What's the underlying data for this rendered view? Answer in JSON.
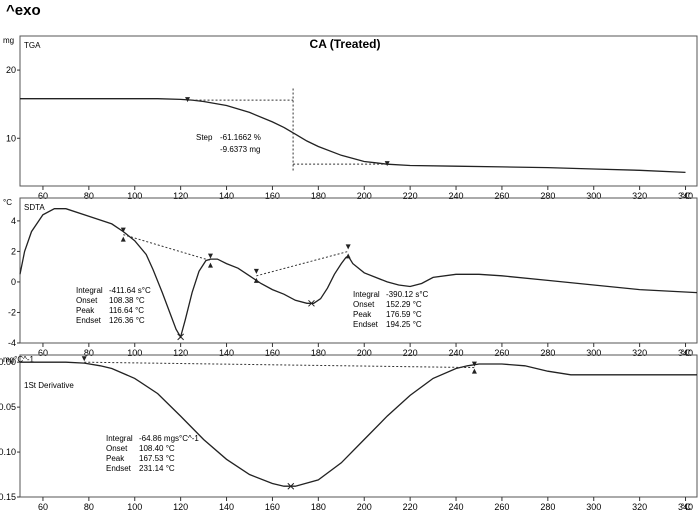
{
  "header": {
    "exo_label": "^exo"
  },
  "chart_data": [
    {
      "type": "line",
      "title": "CA (Treated)",
      "series_label": "TGA",
      "yunit": "mg",
      "xunit": "°C",
      "xlim": [
        50,
        345
      ],
      "ylim": [
        3,
        25
      ],
      "yticks": [
        10,
        20
      ],
      "xticks": [
        60,
        80,
        100,
        120,
        140,
        160,
        180,
        200,
        220,
        240,
        260,
        280,
        300,
        320,
        340
      ],
      "series": [
        {
          "x": [
            50,
            60,
            80,
            100,
            110,
            120,
            125,
            130,
            140,
            150,
            160,
            165,
            170,
            175,
            180,
            190,
            200,
            205,
            210,
            220,
            240,
            260,
            280,
            300,
            320,
            340
          ],
          "y": [
            15.8,
            15.8,
            15.8,
            15.8,
            15.8,
            15.7,
            15.6,
            15.4,
            14.8,
            13.8,
            12.4,
            11.6,
            10.6,
            9.6,
            8.8,
            7.5,
            6.6,
            6.4,
            6.2,
            6.0,
            5.9,
            5.8,
            5.7,
            5.5,
            5.3,
            5.0
          ]
        }
      ],
      "step_annotation": {
        "label": "Step",
        "percent": "-61.1662 %",
        "mass": "-9.6373 mg",
        "x_start": 123,
        "x_end": 210,
        "x_marker": 169,
        "y_start": 15.6,
        "y_end": 6.2
      }
    },
    {
      "type": "line",
      "series_label": "SDTA",
      "yunit": "°C",
      "xunit": "°C",
      "xlim": [
        50,
        345
      ],
      "ylim": [
        -4,
        5.5
      ],
      "yticks": [
        -4,
        -2,
        0,
        2,
        4
      ],
      "xticks": [
        60,
        80,
        100,
        120,
        140,
        160,
        180,
        200,
        220,
        240,
        260,
        280,
        300,
        320,
        340
      ],
      "series": [
        {
          "x": [
            50,
            52,
            55,
            60,
            65,
            70,
            80,
            90,
            95,
            100,
            105,
            108,
            112,
            116,
            118,
            120,
            122,
            125,
            128,
            131,
            133,
            136,
            140,
            145,
            150,
            155,
            160,
            165,
            170,
            175,
            178,
            181,
            184,
            187,
            190,
            192,
            193,
            195,
            200,
            205,
            210,
            215,
            220,
            225,
            230,
            240,
            250,
            260,
            280,
            300,
            320,
            345
          ],
          "y": [
            0.5,
            2.0,
            3.3,
            4.4,
            4.8,
            4.8,
            4.3,
            3.8,
            3.3,
            2.7,
            1.8,
            0.8,
            -0.7,
            -2.3,
            -3.1,
            -3.6,
            -2.5,
            -0.7,
            0.7,
            1.4,
            1.5,
            1.5,
            1.2,
            0.9,
            0.4,
            -0.1,
            -0.5,
            -0.8,
            -1.2,
            -1.4,
            -1.4,
            -1.1,
            -0.4,
            0.5,
            1.2,
            1.6,
            1.7,
            1.2,
            0.6,
            0.3,
            0.0,
            -0.2,
            -0.3,
            -0.1,
            0.3,
            0.5,
            0.5,
            0.4,
            0.1,
            -0.2,
            -0.5,
            -0.7
          ]
        }
      ],
      "peak_annotations": [
        {
          "label_integral": "Integral",
          "integral": "-411.64 s°C",
          "label_onset": "Onset",
          "onset": "108.38 °C",
          "label_peak": "Peak",
          "peak": "116.64 °C",
          "label_endset": "Endset",
          "endset": "126.36 °C",
          "baseline": {
            "x": [
              95,
              133
            ],
            "y": [
              3.1,
              1.4
            ]
          },
          "x_min": 120,
          "y_min": -3.6
        },
        {
          "label_integral": "Integral",
          "integral": "-390.12 s°C",
          "label_onset": "Onset",
          "onset": "152.29 °C",
          "label_peak": "Peak",
          "peak": "176.59 °C",
          "label_endset": "Endset",
          "endset": "194.25 °C",
          "baseline": {
            "x": [
              153,
              193
            ],
            "y": [
              0.4,
              2.0
            ]
          },
          "x_min": 177,
          "y_min": -1.4
        }
      ]
    },
    {
      "type": "line",
      "series_label": "1St Derivative",
      "yunit": "mg°C^-1",
      "xunit": "°C",
      "xlim": [
        50,
        345
      ],
      "ylim": [
        -0.15,
        0.008
      ],
      "yticks": [
        -0.15,
        -0.1,
        -0.05,
        0.0
      ],
      "ytick_labels": [
        "-0.15",
        "-0.10",
        "-0.05",
        "-0.00"
      ],
      "xticks": [
        60,
        80,
        100,
        120,
        140,
        160,
        180,
        200,
        220,
        240,
        260,
        280,
        300,
        320,
        340
      ],
      "series": [
        {
          "x": [
            50,
            60,
            70,
            78,
            85,
            90,
            100,
            110,
            120,
            130,
            140,
            150,
            160,
            165,
            170,
            180,
            190,
            200,
            210,
            220,
            230,
            240,
            245,
            250,
            260,
            270,
            280,
            290,
            300,
            320,
            345
          ],
          "y": [
            0.0,
            0.0,
            0.0,
            -0.001,
            -0.004,
            -0.007,
            -0.018,
            -0.035,
            -0.06,
            -0.086,
            -0.108,
            -0.125,
            -0.135,
            -0.138,
            -0.138,
            -0.131,
            -0.112,
            -0.086,
            -0.06,
            -0.037,
            -0.018,
            -0.007,
            -0.004,
            -0.002,
            -0.002,
            -0.004,
            -0.01,
            -0.014,
            -0.014,
            -0.014,
            -0.014
          ]
        }
      ],
      "peak_annotation": {
        "label_integral": "Integral",
        "integral": "-64.86 mgs°C^-1",
        "label_onset": "Onset",
        "onset": "108.40 °C",
        "label_peak": "Peak",
        "peak": "167.53 °C",
        "label_endset": "Endset",
        "endset": "231.14 °C",
        "baseline": {
          "x": [
            78,
            248
          ],
          "y": [
            0.0,
            -0.006
          ]
        },
        "x_min": 168,
        "y_min": -0.138
      }
    }
  ]
}
